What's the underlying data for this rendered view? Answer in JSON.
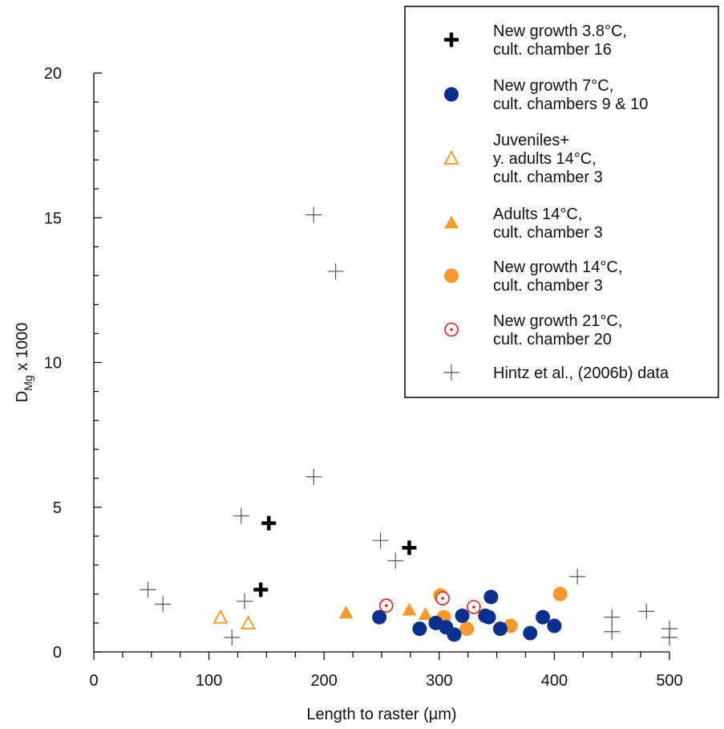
{
  "chart_data": {
    "type": "scatter",
    "xlabel": "Length to raster (µm)",
    "ylabel": "D_Mg x 1000",
    "ylabel_main": "D",
    "ylabel_sub": "Mg",
    "ylabel_suffix": " x 1000",
    "xlim": [
      0,
      500
    ],
    "ylim": [
      0,
      20
    ],
    "x_ticks": [
      "0",
      "100",
      "200",
      "300",
      "400",
      "500"
    ],
    "y_ticks": [
      "0",
      "5",
      "10",
      "15",
      "20"
    ],
    "grid": false,
    "legend_position": "top-right",
    "series": [
      {
        "name": [
          "New growth 3.8°C,",
          "cult. chamber 16"
        ],
        "marker": "bold-plus",
        "color": "#000000",
        "points": [
          [
            152,
            4.45
          ],
          [
            145,
            2.15
          ],
          [
            274,
            3.6
          ]
        ]
      },
      {
        "name": [
          "New growth 7°C,",
          "cult. chambers 9 & 10"
        ],
        "marker": "filled-circle",
        "color": "#0b2f8f",
        "points": [
          [
            248,
            1.2
          ],
          [
            283,
            0.8
          ],
          [
            297,
            1.0
          ],
          [
            306,
            0.85
          ],
          [
            313,
            0.6
          ],
          [
            320,
            1.25
          ],
          [
            340,
            1.25
          ],
          [
            343,
            1.2
          ],
          [
            345,
            1.9
          ],
          [
            353,
            0.8
          ],
          [
            379,
            0.65
          ],
          [
            390,
            1.2
          ],
          [
            400,
            0.9
          ]
        ]
      },
      {
        "name": [
          "Juveniles+",
          "y. adults  14°C,",
          "cult. chamber 3"
        ],
        "marker": "open-triangle",
        "color": "#f59a2f",
        "points": [
          [
            110,
            1.2
          ],
          [
            134,
            1.0
          ]
        ]
      },
      {
        "name": [
          "Adults 14°C,",
          "cult. chamber 3"
        ],
        "marker": "filled-triangle",
        "color": "#f59a2f",
        "points": [
          [
            219,
            1.35
          ],
          [
            274,
            1.45
          ],
          [
            288,
            1.3
          ]
        ]
      },
      {
        "name": [
          "New growth 14°C,",
          "cult. chamber 3"
        ],
        "marker": "filled-circle",
        "color": "#f59a2f",
        "points": [
          [
            301,
            1.95
          ],
          [
            304,
            1.2
          ],
          [
            324,
            0.8
          ],
          [
            362,
            0.9
          ],
          [
            405,
            2.0
          ]
        ]
      },
      {
        "name": [
          "New growth 21°C,",
          "cult. chamber 20"
        ],
        "marker": "circle-dot",
        "color": "#e0201c",
        "points": [
          [
            254,
            1.6
          ],
          [
            303,
            1.85
          ],
          [
            330,
            1.55
          ]
        ]
      },
      {
        "name": [
          "Hintz et al., (2006b) data"
        ],
        "marker": "thin-plus",
        "color": "#555555",
        "points": [
          [
            191,
            15.1
          ],
          [
            210,
            13.15
          ],
          [
            191,
            6.05
          ],
          [
            128,
            4.7
          ],
          [
            47,
            2.15
          ],
          [
            60,
            1.65
          ],
          [
            120,
            0.5
          ],
          [
            131,
            1.75
          ],
          [
            249,
            3.85
          ],
          [
            262,
            3.15
          ],
          [
            420,
            2.6
          ],
          [
            450,
            1.2
          ],
          [
            450,
            0.7
          ],
          [
            480,
            1.4
          ],
          [
            500,
            0.8
          ],
          [
            500,
            0.5
          ]
        ]
      }
    ]
  }
}
